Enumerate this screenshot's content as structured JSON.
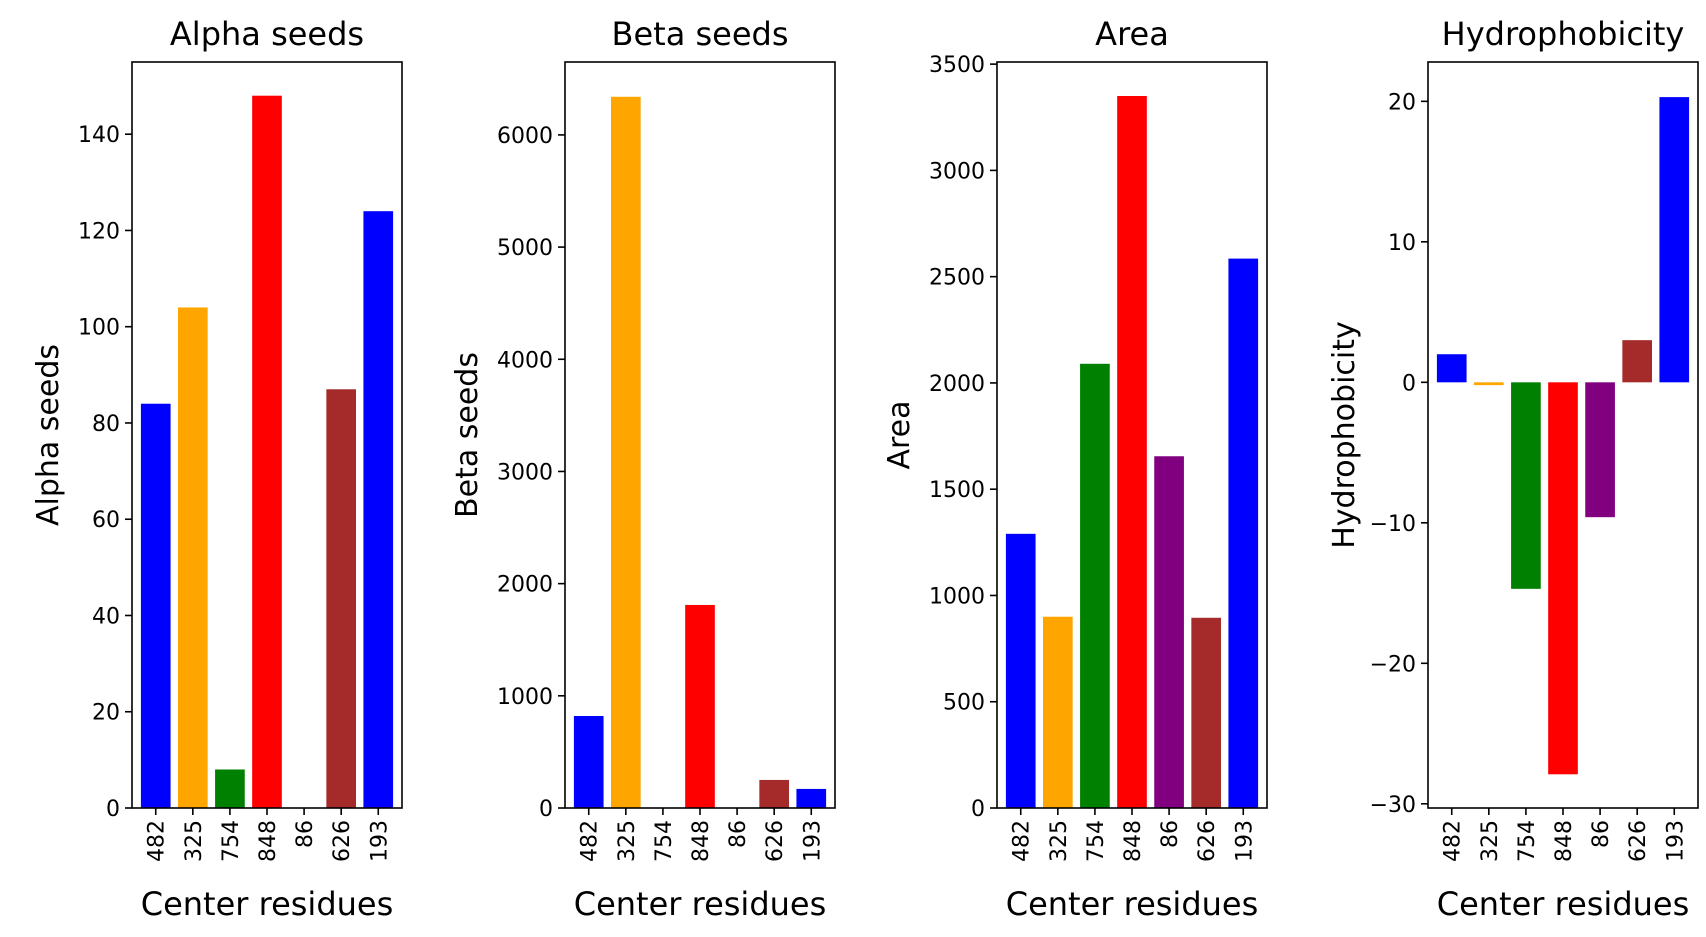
{
  "chart_data": [
    {
      "type": "bar",
      "title": "Alpha seeds",
      "xlabel": "Center residues",
      "ylabel": "Alpha seeds",
      "categories": [
        "482",
        "325",
        "754",
        "848",
        "86",
        "626",
        "193"
      ],
      "values": [
        84,
        104,
        8,
        148,
        0,
        87,
        124
      ],
      "colors": [
        "#0000ff",
        "#ffa500",
        "#008000",
        "#ff0000",
        "#800080",
        "#a52a2a",
        "#0000ff"
      ],
      "ylim": [
        0,
        155
      ],
      "yticks": [
        0,
        20,
        40,
        60,
        80,
        100,
        120,
        140
      ],
      "ytick_labels": [
        "0",
        "20",
        "40",
        "60",
        "80",
        "100",
        "120",
        "140"
      ]
    },
    {
      "type": "bar",
      "title": "Beta seeds",
      "xlabel": "Center residues",
      "ylabel": "Beta seeds",
      "categories": [
        "482",
        "325",
        "754",
        "848",
        "86",
        "626",
        "193"
      ],
      "values": [
        820,
        6340,
        0,
        1810,
        0,
        250,
        170
      ],
      "colors": [
        "#0000ff",
        "#ffa500",
        "#008000",
        "#ff0000",
        "#800080",
        "#a52a2a",
        "#0000ff"
      ],
      "ylim": [
        0,
        6650
      ],
      "yticks": [
        0,
        1000,
        2000,
        3000,
        4000,
        5000,
        6000
      ],
      "ytick_labels": [
        "0",
        "1000",
        "2000",
        "3000",
        "4000",
        "5000",
        "6000"
      ]
    },
    {
      "type": "bar",
      "title": "Area",
      "xlabel": "Center residues",
      "ylabel": "Area",
      "categories": [
        "482",
        "325",
        "754",
        "848",
        "86",
        "626",
        "193"
      ],
      "values": [
        1290,
        900,
        2090,
        3350,
        1655,
        895,
        2585
      ],
      "colors": [
        "#0000ff",
        "#ffa500",
        "#008000",
        "#ff0000",
        "#800080",
        "#a52a2a",
        "#0000ff"
      ],
      "ylim": [
        0,
        3510
      ],
      "yticks": [
        0,
        500,
        1000,
        1500,
        2000,
        2500,
        3000,
        3500
      ],
      "ytick_labels": [
        "0",
        "500",
        "1000",
        "1500",
        "2000",
        "2500",
        "3000",
        "3500"
      ]
    },
    {
      "type": "bar",
      "title": "Hydrophobicity",
      "xlabel": "Center residues",
      "ylabel": "Hydrophobicity",
      "categories": [
        "482",
        "325",
        "754",
        "848",
        "86",
        "626",
        "193"
      ],
      "values": [
        2.0,
        -0.2,
        -14.7,
        -27.9,
        -9.6,
        3.0,
        20.3
      ],
      "colors": [
        "#0000ff",
        "#ffa500",
        "#008000",
        "#ff0000",
        "#800080",
        "#a52a2a",
        "#0000ff"
      ],
      "ylim": [
        -30.3,
        22.8
      ],
      "yticks": [
        -30,
        -20,
        -10,
        0,
        10,
        20
      ],
      "ytick_labels": [
        "−30",
        "−20",
        "−10",
        "0",
        "10",
        "20"
      ]
    }
  ]
}
